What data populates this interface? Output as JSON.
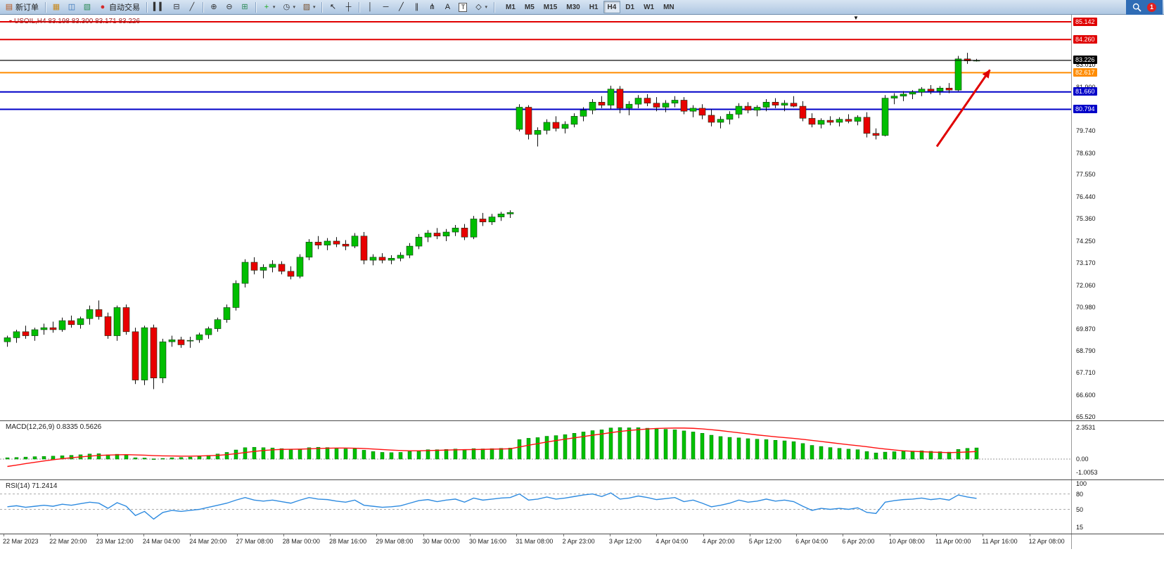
{
  "window": {
    "notification_count": "1"
  },
  "toolbar": {
    "items": [
      {
        "type": "button",
        "name": "new-order-button",
        "icon": "new-order-icon",
        "glyph": "▤",
        "glyph_color": "#b8541a",
        "label": "新订单"
      },
      {
        "type": "sep"
      },
      {
        "type": "button",
        "name": "market-watch-button",
        "icon": "market-watch-icon",
        "glyph": "▦",
        "glyph_color": "#c8881a"
      },
      {
        "type": "button",
        "name": "data-window-button",
        "icon": "data-window-icon",
        "glyph": "◫",
        "glyph_color": "#2e6db4"
      },
      {
        "type": "button",
        "name": "navigator-button",
        "icon": "navigator-icon",
        "glyph": "▧",
        "glyph_color": "#2e8b57"
      },
      {
        "type": "button",
        "name": "auto-trading-button",
        "icon": "auto-trading-icon",
        "glyph": "●",
        "glyph_color": "#d42a2a",
        "label": "自动交易"
      },
      {
        "type": "sep"
      },
      {
        "type": "button",
        "name": "chart-bars-button",
        "icon": "bar-chart-icon",
        "glyph": "▍▍",
        "glyph_color": "#333333"
      },
      {
        "type": "button",
        "name": "chart-candles-button",
        "icon": "candlestick-icon",
        "glyph": "⊟",
        "glyph_color": "#333333"
      },
      {
        "type": "button",
        "name": "chart-line-button",
        "icon": "line-chart-icon",
        "glyph": "╱",
        "glyph_color": "#333333"
      },
      {
        "type": "sep"
      },
      {
        "type": "button",
        "name": "zoom-in-button",
        "icon": "zoom-in-icon",
        "glyph": "⊕",
        "glyph_color": "#333333"
      },
      {
        "type": "button",
        "name": "zoom-out-button",
        "icon": "zoom-out-icon",
        "glyph": "⊖",
        "glyph_color": "#333333"
      },
      {
        "type": "button",
        "name": "tile-windows-button",
        "icon": "tile-windows-icon",
        "glyph": "⊞",
        "glyph_color": "#2e8b57"
      },
      {
        "type": "sep"
      },
      {
        "type": "button",
        "name": "indicators-button",
        "icon": "indicators-add-icon",
        "glyph": "+",
        "glyph_color": "#1faa1f",
        "dropdown": true
      },
      {
        "type": "button",
        "name": "periods-button",
        "icon": "clock-icon",
        "glyph": "◷",
        "glyph_color": "#333333",
        "dropdown": true
      },
      {
        "type": "button",
        "name": "templates-button",
        "icon": "template-icon",
        "glyph": "▨",
        "glyph_color": "#7a5230",
        "dropdown": true
      },
      {
        "type": "sep"
      },
      {
        "type": "button",
        "name": "cursor-button",
        "icon": "cursor-icon",
        "glyph": "↖",
        "glyph_color": "#222222"
      },
      {
        "type": "button",
        "name": "crosshair-button",
        "icon": "crosshair-icon",
        "glyph": "┼",
        "glyph_color": "#222222"
      },
      {
        "type": "sep"
      },
      {
        "type": "button",
        "name": "vertical-line-button",
        "icon": "vertical-line-icon",
        "glyph": "│",
        "glyph_color": "#222222"
      },
      {
        "type": "button",
        "name": "horizontal-line-button",
        "icon": "horizontal-line-icon",
        "glyph": "─",
        "glyph_color": "#222222"
      },
      {
        "type": "button",
        "name": "trendline-button",
        "icon": "trendline-icon",
        "glyph": "╱",
        "glyph_color": "#222222"
      },
      {
        "type": "button",
        "name": "channel-button",
        "icon": "channel-icon",
        "glyph": "∥",
        "glyph_color": "#222222"
      },
      {
        "type": "button",
        "name": "fibonacci-button",
        "icon": "fibonacci-icon",
        "glyph": "⋔",
        "glyph_color": "#222222"
      },
      {
        "type": "button",
        "name": "text-button",
        "icon": "text-icon",
        "glyph": "A",
        "glyph_color": "#222222"
      },
      {
        "type": "button",
        "name": "label-button",
        "icon": "text-label-icon",
        "glyph": "T",
        "glyph_color": "#222222",
        "boxed": true
      },
      {
        "type": "button",
        "name": "shapes-button",
        "icon": "shapes-icon",
        "glyph": "◇",
        "glyph_color": "#222222",
        "dropdown": true
      },
      {
        "type": "sep"
      }
    ],
    "timeframes": [
      "M1",
      "M5",
      "M15",
      "M30",
      "H1",
      "H4",
      "D1",
      "W1",
      "MN"
    ],
    "active_timeframe": "H4"
  },
  "chart": {
    "header": "USOIL,H4  83.198 83.300 83.171 83.226",
    "price_lines": [
      {
        "label": "85.142",
        "price": 85.142,
        "color": "#E00000"
      },
      {
        "label": "84.260",
        "price": 84.26,
        "color": "#E00000"
      },
      {
        "label": "83.226",
        "price": 83.226,
        "color": "#000000",
        "current": true
      },
      {
        "label": "82.617",
        "price": 82.617,
        "color": "#FF8C00"
      },
      {
        "label": "81.660",
        "price": 81.66,
        "color": "#0000C8"
      },
      {
        "label": "80.794",
        "price": 80.794,
        "color": "#0000C8"
      }
    ],
    "scale_labels": [
      "83.010",
      "81.900",
      "79.740",
      "78.630",
      "77.550",
      "76.440",
      "75.360",
      "74.250",
      "73.170",
      "72.060",
      "70.980",
      "69.870",
      "68.790",
      "67.710",
      "66.600",
      "65.520"
    ],
    "arrow": {
      "from_bar": 102,
      "from_price": 78.95,
      "to_bar": 107.8,
      "to_price": 82.75
    },
    "shift_marker_bar": 93
  },
  "panels": {
    "macd": {
      "label": "MACD(12,26,9) 0.8335 0.5626",
      "scale": [
        "2.3531",
        "0.00",
        "-1.0053"
      ]
    },
    "rsi": {
      "label": "RSI(14) 71.2414",
      "scale": [
        "100",
        "80",
        "50",
        "15"
      ],
      "levels": [
        80,
        50
      ]
    }
  },
  "chart_data": {
    "type": "candlestick",
    "symbol": "USOIL",
    "timeframe": "H4",
    "y_range": [
      65.52,
      85.142
    ],
    "x_labels": [
      "22 Mar 2023",
      "22 Mar 20:00",
      "23 Mar 12:00",
      "24 Mar 04:00",
      "24 Mar 20:00",
      "27 Mar 08:00",
      "28 Mar 00:00",
      "28 Mar 16:00",
      "29 Mar 08:00",
      "30 Mar 00:00",
      "30 Mar 16:00",
      "31 Mar 08:00",
      "2 Apr 23:00",
      "3 Apr 12:00",
      "4 Apr 04:00",
      "4 Apr 20:00",
      "5 Apr 12:00",
      "6 Apr 04:00",
      "6 Apr 20:00",
      "10 Apr 08:00",
      "11 Apr 00:00",
      "11 Apr 16:00",
      "12 Apr 08:00"
    ],
    "ohlc": [
      [
        69.25,
        69.55,
        69.0,
        69.45
      ],
      [
        69.45,
        69.85,
        69.2,
        69.75
      ],
      [
        69.75,
        70.05,
        69.4,
        69.55
      ],
      [
        69.55,
        69.95,
        69.3,
        69.85
      ],
      [
        69.85,
        70.15,
        69.6,
        69.95
      ],
      [
        69.95,
        70.25,
        69.7,
        69.85
      ],
      [
        69.85,
        70.45,
        69.75,
        70.3
      ],
      [
        70.3,
        70.55,
        69.95,
        70.1
      ],
      [
        70.1,
        70.5,
        69.9,
        70.4
      ],
      [
        70.4,
        71.05,
        70.1,
        70.85
      ],
      [
        70.85,
        71.3,
        70.35,
        70.5
      ],
      [
        70.5,
        70.7,
        69.4,
        69.55
      ],
      [
        69.55,
        71.05,
        69.3,
        70.95
      ],
      [
        70.95,
        71.1,
        69.6,
        69.75
      ],
      [
        69.75,
        69.95,
        67.15,
        67.35
      ],
      [
        67.35,
        70.05,
        67.1,
        69.95
      ],
      [
        69.95,
        70.1,
        66.9,
        67.45
      ],
      [
        67.45,
        69.4,
        67.2,
        69.25
      ],
      [
        69.25,
        69.55,
        69.0,
        69.35
      ],
      [
        69.35,
        69.5,
        68.95,
        69.1
      ],
      [
        69.32,
        69.5,
        68.95,
        69.32
      ],
      [
        69.35,
        69.7,
        69.2,
        69.6
      ],
      [
        69.6,
        70.0,
        69.4,
        69.9
      ],
      [
        69.9,
        70.45,
        69.75,
        70.35
      ],
      [
        70.35,
        71.1,
        70.2,
        70.95
      ],
      [
        70.95,
        72.3,
        70.8,
        72.15
      ],
      [
        72.15,
        73.35,
        71.95,
        73.2
      ],
      [
        73.2,
        73.45,
        72.6,
        72.8
      ],
      [
        72.8,
        73.1,
        72.4,
        72.95
      ],
      [
        72.95,
        73.3,
        72.7,
        73.1
      ],
      [
        73.1,
        73.25,
        72.6,
        72.75
      ],
      [
        72.75,
        73.0,
        72.35,
        72.5
      ],
      [
        72.5,
        73.6,
        72.4,
        73.45
      ],
      [
        73.45,
        74.35,
        73.3,
        74.2
      ],
      [
        74.2,
        74.5,
        73.85,
        74.05
      ],
      [
        74.05,
        74.4,
        73.8,
        74.25
      ],
      [
        74.25,
        74.45,
        73.95,
        74.1
      ],
      [
        74.1,
        74.3,
        73.8,
        74.0
      ],
      [
        74.0,
        74.65,
        73.9,
        74.5
      ],
      [
        74.5,
        74.7,
        73.1,
        73.3
      ],
      [
        73.3,
        73.6,
        73.05,
        73.45
      ],
      [
        73.45,
        73.65,
        73.15,
        73.3
      ],
      [
        73.3,
        73.55,
        73.1,
        73.4
      ],
      [
        73.4,
        73.7,
        73.25,
        73.55
      ],
      [
        73.55,
        74.15,
        73.4,
        74.0
      ],
      [
        74.0,
        74.6,
        73.85,
        74.45
      ],
      [
        74.45,
        74.8,
        74.2,
        74.65
      ],
      [
        74.65,
        74.9,
        74.35,
        74.5
      ],
      [
        74.5,
        74.85,
        74.25,
        74.7
      ],
      [
        74.7,
        75.05,
        74.5,
        74.9
      ],
      [
        74.9,
        75.1,
        74.3,
        74.45
      ],
      [
        74.45,
        75.5,
        74.35,
        75.35
      ],
      [
        75.35,
        75.65,
        75.0,
        75.2
      ],
      [
        75.2,
        75.6,
        75.05,
        75.45
      ],
      [
        75.45,
        75.7,
        75.25,
        75.6
      ],
      [
        75.6,
        75.78,
        75.4,
        75.67
      ],
      [
        79.8,
        81.05,
        79.7,
        80.9
      ],
      [
        80.9,
        81.0,
        79.3,
        79.55
      ],
      [
        79.55,
        79.9,
        78.95,
        79.75
      ],
      [
        79.75,
        80.3,
        79.55,
        80.15
      ],
      [
        80.15,
        80.45,
        79.7,
        79.85
      ],
      [
        79.85,
        80.2,
        79.6,
        80.05
      ],
      [
        80.05,
        80.6,
        79.9,
        80.45
      ],
      [
        80.45,
        80.9,
        80.2,
        80.75
      ],
      [
        80.75,
        81.3,
        80.55,
        81.15
      ],
      [
        81.15,
        81.45,
        80.85,
        81.0
      ],
      [
        81.0,
        81.97,
        80.8,
        81.8
      ],
      [
        81.8,
        81.95,
        80.6,
        80.85
      ],
      [
        80.85,
        81.2,
        80.5,
        81.05
      ],
      [
        81.05,
        81.5,
        80.85,
        81.35
      ],
      [
        81.35,
        81.55,
        80.95,
        81.1
      ],
      [
        81.1,
        81.4,
        80.7,
        80.9
      ],
      [
        80.9,
        81.25,
        80.65,
        81.1
      ],
      [
        81.1,
        81.45,
        80.9,
        81.25
      ],
      [
        81.25,
        81.4,
        80.55,
        80.7
      ],
      [
        80.7,
        81.0,
        80.4,
        80.85
      ],
      [
        80.85,
        81.05,
        80.3,
        80.5
      ],
      [
        80.5,
        80.8,
        79.95,
        80.15
      ],
      [
        80.15,
        80.45,
        79.85,
        80.3
      ],
      [
        80.3,
        80.7,
        80.05,
        80.55
      ],
      [
        80.55,
        81.1,
        80.35,
        80.95
      ],
      [
        80.95,
        81.15,
        80.6,
        80.75
      ],
      [
        80.75,
        81.0,
        80.45,
        80.9
      ],
      [
        80.9,
        81.3,
        80.7,
        81.15
      ],
      [
        81.15,
        81.35,
        80.85,
        81.0
      ],
      [
        81.0,
        81.25,
        80.7,
        81.1
      ],
      [
        81.1,
        81.45,
        80.9,
        80.95
      ],
      [
        80.95,
        81.2,
        80.2,
        80.35
      ],
      [
        80.35,
        80.6,
        79.9,
        80.05
      ],
      [
        80.05,
        80.35,
        79.85,
        80.25
      ],
      [
        80.25,
        80.45,
        80.0,
        80.15
      ],
      [
        80.15,
        80.4,
        79.95,
        80.3
      ],
      [
        80.3,
        80.55,
        80.1,
        80.2
      ],
      [
        80.2,
        80.5,
        80.0,
        80.4
      ],
      [
        80.4,
        80.65,
        79.4,
        79.6
      ],
      [
        79.6,
        79.85,
        79.3,
        79.5
      ],
      [
        79.5,
        81.5,
        79.45,
        81.35
      ],
      [
        81.35,
        81.6,
        81.05,
        81.45
      ],
      [
        81.45,
        81.7,
        81.2,
        81.55
      ],
      [
        81.55,
        81.75,
        81.3,
        81.65
      ],
      [
        81.65,
        81.9,
        81.45,
        81.8
      ],
      [
        81.8,
        82.0,
        81.55,
        81.7
      ],
      [
        81.7,
        81.95,
        81.5,
        81.85
      ],
      [
        81.85,
        82.1,
        81.6,
        81.75
      ],
      [
        81.75,
        83.45,
        81.7,
        83.3
      ],
      [
        83.3,
        83.6,
        83.05,
        83.2
      ],
      [
        83.198,
        83.3,
        83.171,
        83.226
      ]
    ],
    "macd": {
      "histogram": [
        0.1,
        0.12,
        0.15,
        0.18,
        0.2,
        0.22,
        0.25,
        0.28,
        0.32,
        0.38,
        0.4,
        0.32,
        0.36,
        0.3,
        0.1,
        0.08,
        0.02,
        0.05,
        0.1,
        0.12,
        0.15,
        0.2,
        0.28,
        0.38,
        0.5,
        0.68,
        0.85,
        0.88,
        0.85,
        0.83,
        0.78,
        0.7,
        0.74,
        0.85,
        0.88,
        0.86,
        0.82,
        0.76,
        0.78,
        0.66,
        0.56,
        0.5,
        0.48,
        0.5,
        0.56,
        0.64,
        0.7,
        0.7,
        0.72,
        0.75,
        0.7,
        0.78,
        0.76,
        0.78,
        0.8,
        0.82,
        1.45,
        1.55,
        1.6,
        1.7,
        1.75,
        1.82,
        1.92,
        2.02,
        2.12,
        2.18,
        2.32,
        2.35,
        2.33,
        2.34,
        2.3,
        2.26,
        2.22,
        2.18,
        2.1,
        2.02,
        1.92,
        1.78,
        1.68,
        1.62,
        1.58,
        1.52,
        1.48,
        1.45,
        1.4,
        1.36,
        1.3,
        1.16,
        1.02,
        0.94,
        0.86,
        0.8,
        0.74,
        0.7,
        0.56,
        0.46,
        0.52,
        0.55,
        0.58,
        0.6,
        0.62,
        0.58,
        0.55,
        0.52,
        0.72,
        0.8,
        0.8335
      ],
      "signal": [
        -0.55,
        -0.45,
        -0.34,
        -0.24,
        -0.14,
        -0.05,
        0.03,
        0.1,
        0.16,
        0.22,
        0.27,
        0.3,
        0.32,
        0.33,
        0.31,
        0.29,
        0.26,
        0.24,
        0.23,
        0.22,
        0.22,
        0.23,
        0.25,
        0.28,
        0.33,
        0.4,
        0.49,
        0.57,
        0.64,
        0.69,
        0.72,
        0.73,
        0.74,
        0.76,
        0.79,
        0.81,
        0.82,
        0.82,
        0.81,
        0.79,
        0.75,
        0.71,
        0.67,
        0.64,
        0.62,
        0.62,
        0.63,
        0.65,
        0.67,
        0.69,
        0.7,
        0.71,
        0.72,
        0.74,
        0.75,
        0.77,
        0.9,
        1.03,
        1.15,
        1.27,
        1.38,
        1.48,
        1.58,
        1.68,
        1.78,
        1.87,
        1.97,
        2.06,
        2.13,
        2.19,
        2.24,
        2.28,
        2.3,
        2.31,
        2.31,
        2.29,
        2.25,
        2.19,
        2.12,
        2.04,
        1.96,
        1.88,
        1.8,
        1.73,
        1.66,
        1.6,
        1.54,
        1.47,
        1.39,
        1.31,
        1.23,
        1.15,
        1.07,
        1.0,
        0.92,
        0.83,
        0.75,
        0.68,
        0.62,
        0.58,
        0.55,
        0.52,
        0.5,
        0.48,
        0.5,
        0.53,
        0.5626
      ]
    },
    "rsi": {
      "values": [
        55,
        57,
        54,
        56,
        58,
        56,
        60,
        58,
        61,
        64,
        62,
        52,
        63,
        56,
        38,
        46,
        31,
        44,
        48,
        46,
        48,
        50,
        54,
        58,
        62,
        68,
        73,
        68,
        66,
        68,
        65,
        62,
        68,
        73,
        70,
        69,
        66,
        64,
        68,
        58,
        56,
        54,
        55,
        57,
        62,
        67,
        69,
        65,
        68,
        70,
        64,
        72,
        68,
        70,
        72,
        73,
        80,
        68,
        70,
        74,
        70,
        72,
        75,
        78,
        80,
        75,
        82,
        70,
        72,
        76,
        73,
        69,
        71,
        73,
        65,
        68,
        62,
        55,
        58,
        62,
        68,
        64,
        66,
        70,
        66,
        68,
        65,
        56,
        48,
        52,
        50,
        52,
        50,
        53,
        44,
        42,
        64,
        67,
        69,
        70,
        72,
        69,
        71,
        68,
        78,
        74,
        71.2414
      ]
    }
  },
  "colors": {
    "up": "#00BE00",
    "down": "#E80000",
    "macd_hist": "#00C000",
    "macd_signal": "#FF1010",
    "rsi_line": "#2E8BE0",
    "arrow": "#E00000"
  }
}
